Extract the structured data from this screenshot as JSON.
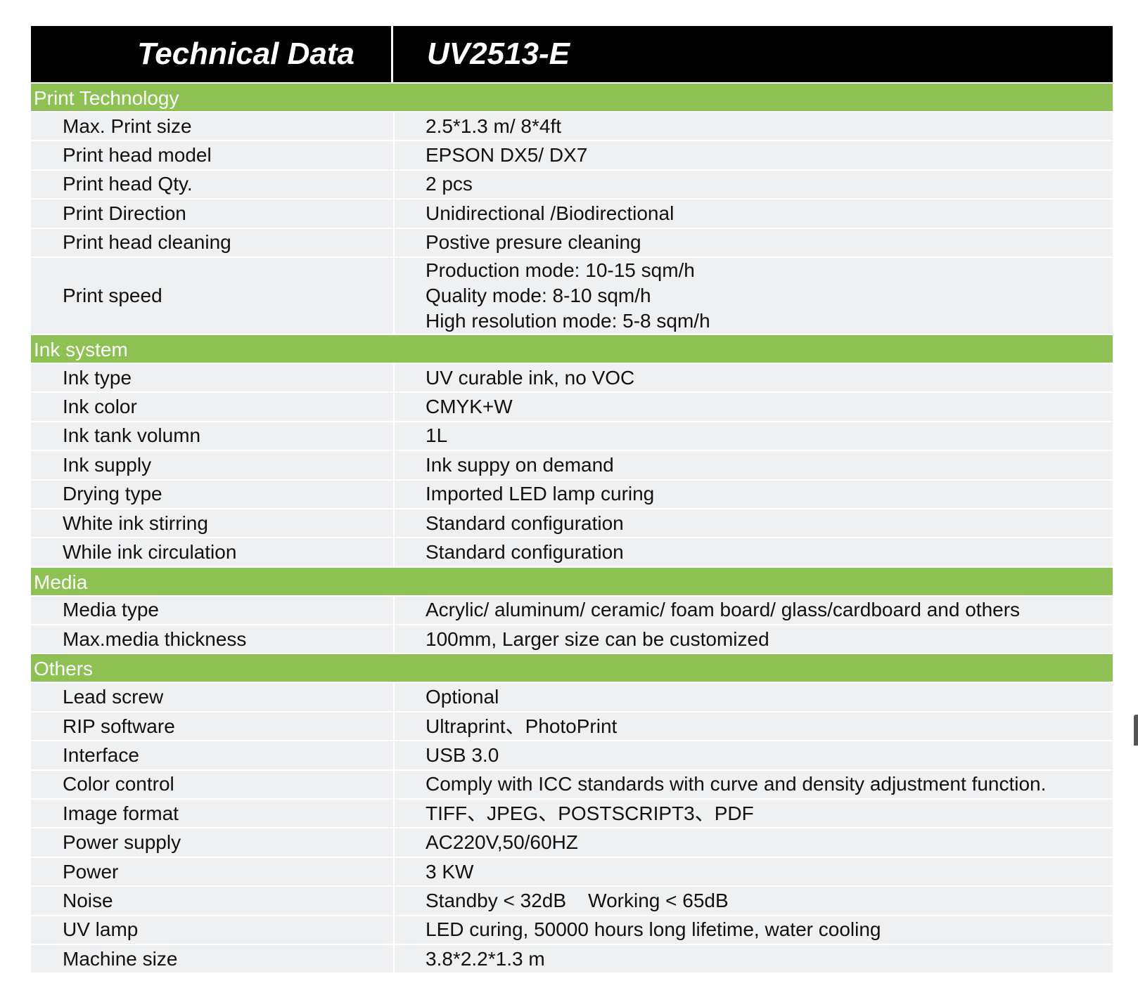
{
  "header": {
    "title": "Technical Data",
    "model": "UV2513-E"
  },
  "colors": {
    "header_bg": "#000000",
    "section_bg": "#8dc153",
    "row_bg": "#eff0f1"
  },
  "sections": [
    {
      "title": "Print Technology",
      "rows": [
        {
          "label": "Max. Print size",
          "values": [
            "2.5*1.3 m/ 8*4ft"
          ]
        },
        {
          "label": "Print head model",
          "values": [
            "EPSON DX5/ DX7"
          ]
        },
        {
          "label": "Print head Qty.",
          "values": [
            "2 pcs"
          ]
        },
        {
          "label": "Print Direction",
          "values": [
            "Unidirectional /Biodirectional"
          ]
        },
        {
          "label": "Print head cleaning",
          "values": [
            "Postive presure cleaning"
          ]
        },
        {
          "label": "Print speed",
          "values": [
            "Production mode: 10-15 sqm/h",
            "Quality mode: 8-10 sqm/h",
            "High resolution mode: 5-8 sqm/h"
          ]
        }
      ]
    },
    {
      "title": "Ink system",
      "rows": [
        {
          "label": "Ink type",
          "values": [
            "UV curable ink, no VOC"
          ]
        },
        {
          "label": "Ink color",
          "values": [
            "CMYK+W"
          ]
        },
        {
          "label": "Ink tank volumn",
          "values": [
            "1L"
          ]
        },
        {
          "label": "Ink supply",
          "values": [
            "Ink suppy on demand"
          ]
        },
        {
          "label": "Drying type",
          "values": [
            "Imported LED lamp curing"
          ]
        },
        {
          "label": "White ink stirring",
          "values": [
            "Standard configuration"
          ]
        },
        {
          "label": "While ink circulation",
          "values": [
            "Standard configuration"
          ]
        }
      ]
    },
    {
      "title": "Media",
      "rows": [
        {
          "label": "Media type",
          "values": [
            "Acrylic/ aluminum/ ceramic/ foam board/ glass/cardboard and others"
          ]
        },
        {
          "label": "Max.media thickness",
          "values": [
            "100mm, Larger size can be customized"
          ]
        }
      ]
    },
    {
      "title": "Others",
      "rows": [
        {
          "label": "Lead screw",
          "values": [
            "Optional"
          ]
        },
        {
          "label": "RIP software",
          "values": [
            "Ultraprint、PhotoPrint"
          ]
        },
        {
          "label": "Interface",
          "values": [
            "USB 3.0"
          ]
        },
        {
          "label": "Color control",
          "values": [
            "Comply with ICC standards with curve and density adjustment function."
          ]
        },
        {
          "label": "Image format",
          "values": [
            "TIFF、JPEG、POSTSCRIPT3、PDF"
          ]
        },
        {
          "label": "Power supply",
          "values": [
            "AC220V,50/60HZ"
          ]
        },
        {
          "label": "Power",
          "values": [
            "3 KW"
          ]
        },
        {
          "label": "Noise",
          "values": [
            "Standby < 32dB    Working < 65dB"
          ]
        },
        {
          "label": "UV lamp",
          "values": [
            "LED curing, 50000 hours long lifetime, water cooling"
          ]
        },
        {
          "label": "Machine size",
          "values": [
            "3.8*2.2*1.3 m"
          ]
        }
      ]
    }
  ]
}
